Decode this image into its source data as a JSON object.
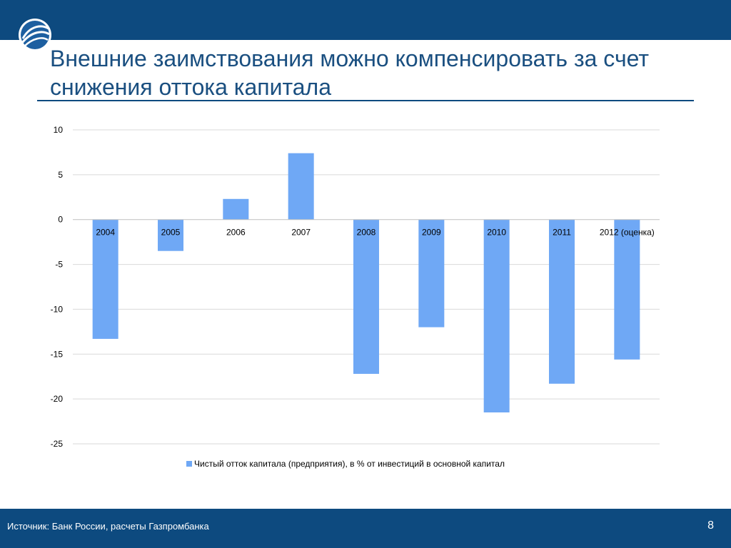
{
  "slide": {
    "title": "Внешние заимствования можно компенсировать за счет снижения оттока капитала",
    "source": "Источник: Банк России, расчеты Газпромбанка",
    "page_number": "8"
  },
  "colors": {
    "band": "#0d4a7f",
    "title_text": "#1a4f80",
    "bar": "#6fa8f5",
    "grid": "#d9d9d9"
  },
  "chart_data": {
    "type": "bar",
    "title": "",
    "xlabel": "",
    "ylabel": "",
    "categories": [
      "2004",
      "2005",
      "2006",
      "2007",
      "2008",
      "2009",
      "2010",
      "2011",
      "2012 (оценка)"
    ],
    "series": [
      {
        "name": "Чистый отток капитала (предприятия), в % от инвестиций в основной капитал",
        "values": [
          -13.3,
          -3.5,
          2.3,
          7.4,
          -17.2,
          -12.0,
          -21.5,
          -18.3,
          -15.6
        ]
      }
    ],
    "ylim": [
      -25,
      10
    ],
    "yticks": [
      10,
      5,
      0,
      -5,
      -10,
      -15,
      -20,
      -25
    ],
    "grid": true,
    "legend_position": "bottom"
  }
}
